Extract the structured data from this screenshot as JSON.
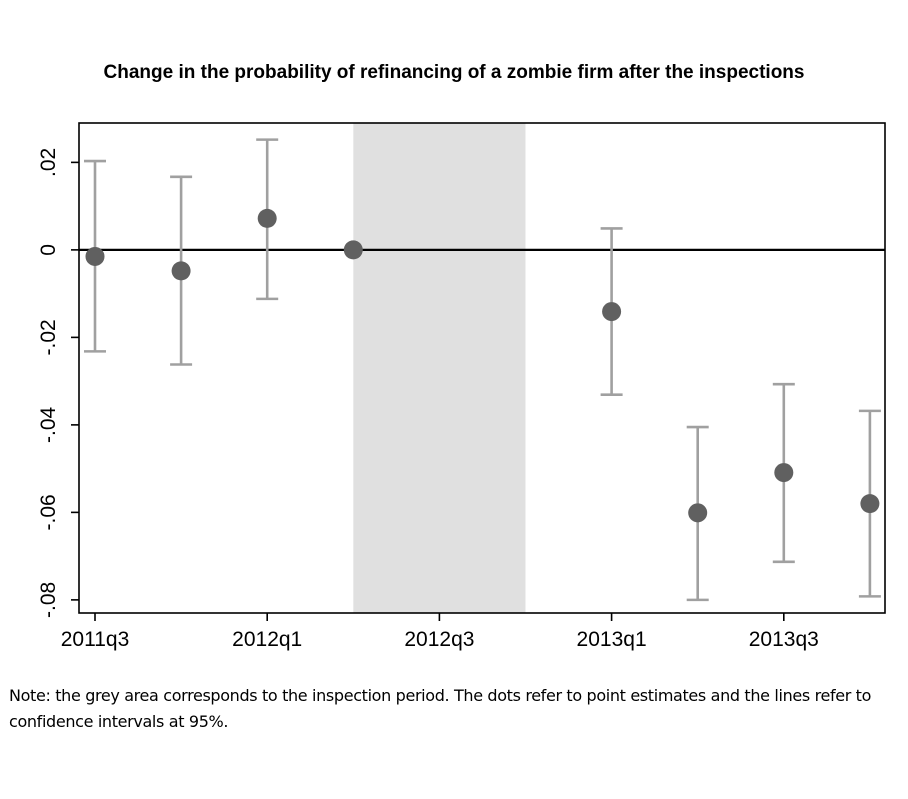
{
  "chart_data": {
    "type": "scatter",
    "title": "Change in the probability of refinancing of a zombie firm after the inspections",
    "xlabel": "",
    "ylabel": "",
    "x_tick_labels": [
      "2011q3",
      "2012q1",
      "2012q3",
      "2013q1",
      "2013q3"
    ],
    "y_tick_labels": [
      ".02",
      "0",
      "-.02",
      "-.04",
      "-.06",
      "-.08"
    ],
    "y_ticks": [
      0.02,
      0,
      -0.02,
      -0.04,
      -0.06,
      -0.08
    ],
    "ylim": [
      -0.083,
      0.029
    ],
    "shaded_region": {
      "from_quarter": "2012q2",
      "to_quarter": "2012q4",
      "color": "#e0e0e0"
    },
    "reference_line_y": 0,
    "grid": false,
    "series": [
      {
        "points": [
          {
            "quarter": "2011q3",
            "estimate": -0.0015,
            "ci_low": -0.0232,
            "ci_high": 0.0203
          },
          {
            "quarter": "2011q4",
            "estimate": -0.0048,
            "ci_low": -0.0262,
            "ci_high": 0.0167
          },
          {
            "quarter": "2012q1",
            "estimate": 0.0072,
            "ci_low": -0.0112,
            "ci_high": 0.0252
          },
          {
            "quarter": "2012q2",
            "estimate": 0.0,
            "ci_low": null,
            "ci_high": null
          },
          {
            "quarter": "2013q1",
            "estimate": -0.0141,
            "ci_low": -0.0331,
            "ci_high": 0.0049
          },
          {
            "quarter": "2013q2",
            "estimate": -0.0601,
            "ci_low": -0.08,
            "ci_high": -0.0405
          },
          {
            "quarter": "2013q3",
            "estimate": -0.0509,
            "ci_low": -0.0713,
            "ci_high": -0.0307
          },
          {
            "quarter": "2013q4",
            "estimate": -0.058,
            "ci_low": -0.0792,
            "ci_high": -0.0368
          }
        ]
      }
    ],
    "colors": {
      "marker": "#606060",
      "ci_line": "#a0a0a0",
      "shade": "#e0e0e0",
      "zero_line": "#000000"
    }
  },
  "note": "Note: the grey area corresponds to the inspection period. The dots refer to point estimates and the lines refer to confidence intervals at 95%."
}
